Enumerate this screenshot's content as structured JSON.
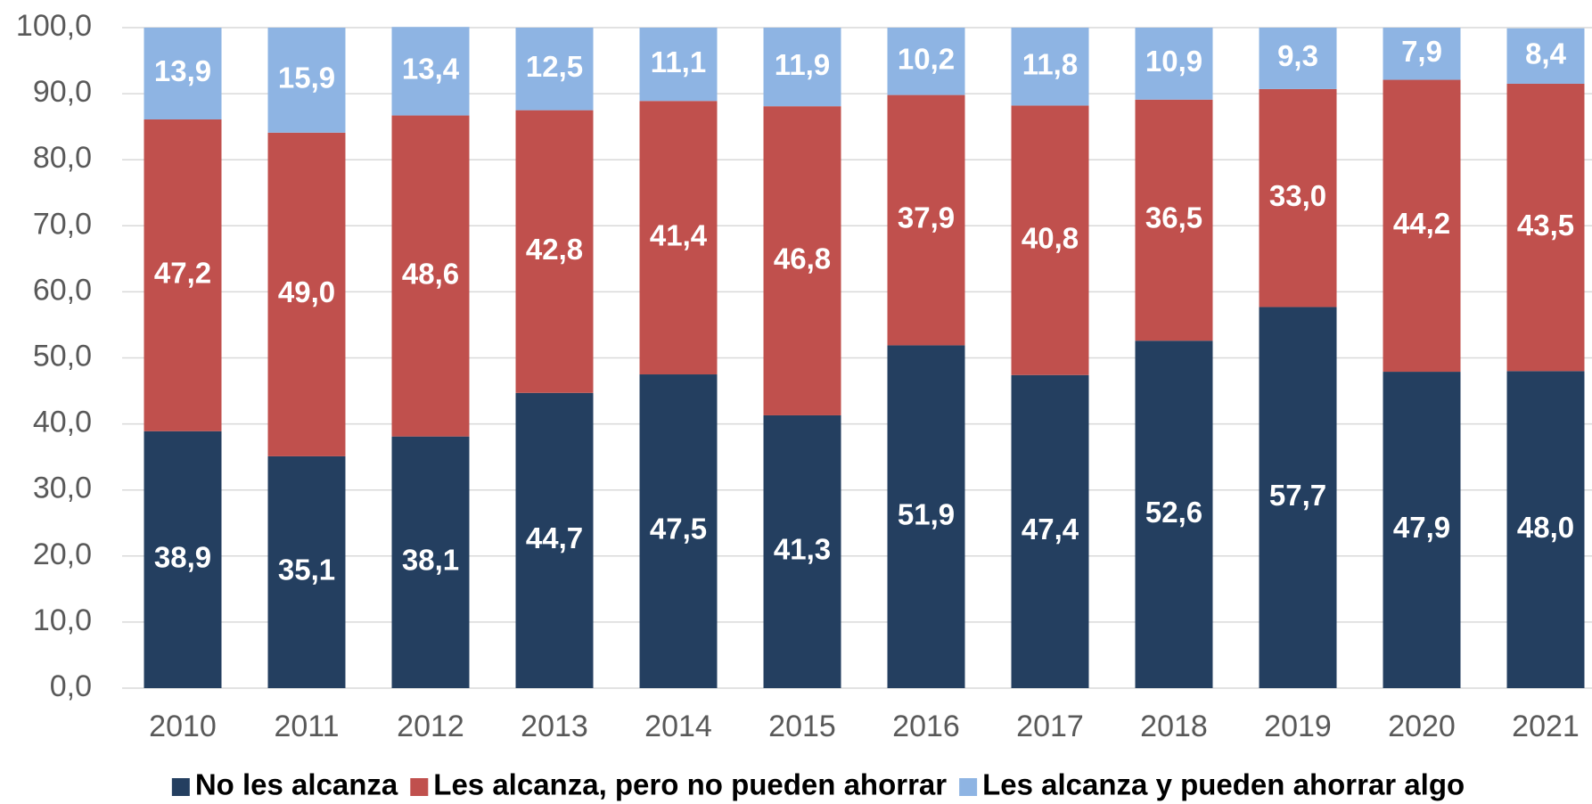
{
  "chart_data": {
    "type": "stacked_bar",
    "categories": [
      "2010",
      "2011",
      "2012",
      "2013",
      "2014",
      "2015",
      "2016",
      "2017",
      "2018",
      "2019",
      "2020",
      "2021"
    ],
    "series": [
      {
        "name": "No les alcanza",
        "color": "#243f60",
        "values": [
          38.9,
          35.1,
          38.1,
          44.7,
          47.5,
          41.3,
          51.9,
          47.4,
          52.6,
          57.7,
          47.9,
          48.0
        ],
        "value_labels": [
          "38,9",
          "35,1",
          "38,1",
          "44,7",
          "47,5",
          "41,3",
          "51,9",
          "47,4",
          "52,6",
          "57,7",
          "47,9",
          "48,0"
        ]
      },
      {
        "name": "Les alcanza, pero no pueden ahorrar",
        "color": "#c0504d",
        "values": [
          47.2,
          49.0,
          48.6,
          42.8,
          41.4,
          46.8,
          37.9,
          40.8,
          36.5,
          33.0,
          44.2,
          43.5
        ],
        "value_labels": [
          "47,2",
          "49,0",
          "48,6",
          "42,8",
          "41,4",
          "46,8",
          "37,9",
          "40,8",
          "36,5",
          "33,0",
          "44,2",
          "43,5"
        ]
      },
      {
        "name": "Les alcanza y pueden ahorrar algo",
        "color": "#8eb4e3",
        "values": [
          13.9,
          15.9,
          13.4,
          12.5,
          11.1,
          11.9,
          10.2,
          11.8,
          10.9,
          9.3,
          7.9,
          8.4
        ],
        "value_labels": [
          "13,9",
          "15,9",
          "13,4",
          "12,5",
          "11,1",
          "11,9",
          "10,2",
          "11,8",
          "10,9",
          "9,3",
          "7,9",
          "8,4"
        ]
      }
    ],
    "ylim": [
      0,
      100
    ],
    "yticks": [
      {
        "value": 0,
        "label": "0,0"
      },
      {
        "value": 10,
        "label": "10,0"
      },
      {
        "value": 20,
        "label": "20,0"
      },
      {
        "value": 30,
        "label": "30,0"
      },
      {
        "value": 40,
        "label": "40,0"
      },
      {
        "value": 50,
        "label": "50,0"
      },
      {
        "value": 60,
        "label": "60,0"
      },
      {
        "value": 70,
        "label": "70,0"
      },
      {
        "value": 80,
        "label": "80,0"
      },
      {
        "value": 90,
        "label": "90,0"
      },
      {
        "value": 100,
        "label": "100,0"
      }
    ],
    "grid": true,
    "legend": "bottom"
  }
}
